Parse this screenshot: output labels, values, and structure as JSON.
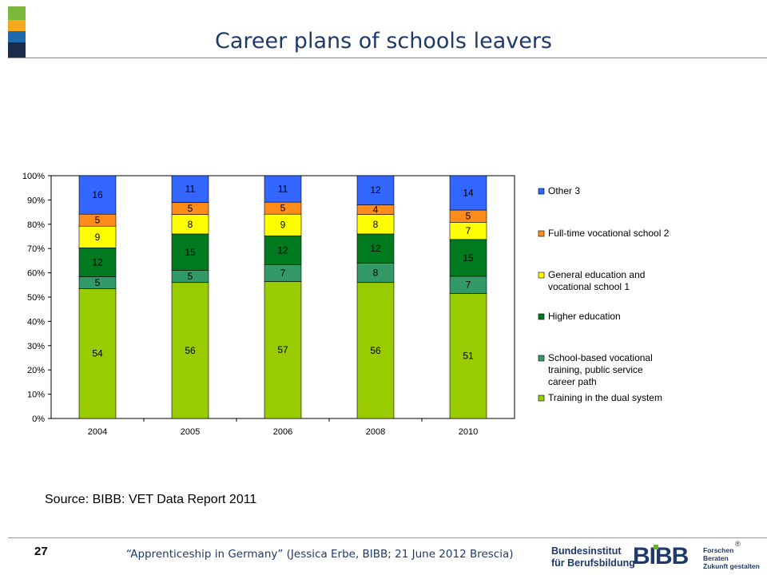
{
  "slide": {
    "title": "Career plans of schools leavers",
    "source": "Source: BIBB: VET Data Report 2011",
    "page_number": "27",
    "footer": "“Apprenticeship in Germany” (Jessica Erbe, BIBB; 21 June 2012 Brescia)",
    "logo": {
      "line1": "Bundesinstitut",
      "line2": "für Berufsbildung",
      "mark": "BIBB",
      "slogan1": "Forschen",
      "slogan2": "Beraten",
      "slogan3": "Zukunft gestalten",
      "registered": "®"
    },
    "stripe_colors": [
      "#7db83a",
      "#f4a81e",
      "#1f69b1",
      "#1b2b4a"
    ]
  },
  "chart_data": {
    "type": "bar",
    "stacked": true,
    "percent_stacked": true,
    "categories": [
      "2004",
      "2005",
      "2006",
      "2008",
      "2010"
    ],
    "y_ticks": [
      "0%",
      "10%",
      "20%",
      "30%",
      "40%",
      "50%",
      "60%",
      "70%",
      "80%",
      "90%",
      "100%"
    ],
    "ylim": [
      0,
      100
    ],
    "legend_position": "right",
    "series": [
      {
        "name": "Training in the dual system",
        "color": "#99cc00",
        "values": [
          54,
          56,
          57,
          56,
          51
        ]
      },
      {
        "name": "School-based vocational training, public service career path",
        "color": "#339966",
        "values": [
          5,
          5,
          7,
          8,
          7
        ]
      },
      {
        "name": "Higher education",
        "color": "#007a1f",
        "values": [
          12,
          15,
          12,
          12,
          15
        ]
      },
      {
        "name": "General education and vocational school 1",
        "color": "#ffff00",
        "values": [
          9,
          8,
          9,
          8,
          7
        ]
      },
      {
        "name": "Full-time vocational school 2",
        "color": "#ff8c1a",
        "values": [
          5,
          5,
          5,
          4,
          5
        ]
      },
      {
        "name": "Other 3",
        "color": "#3366ff",
        "values": [
          16,
          11,
          11,
          12,
          14
        ]
      }
    ]
  }
}
